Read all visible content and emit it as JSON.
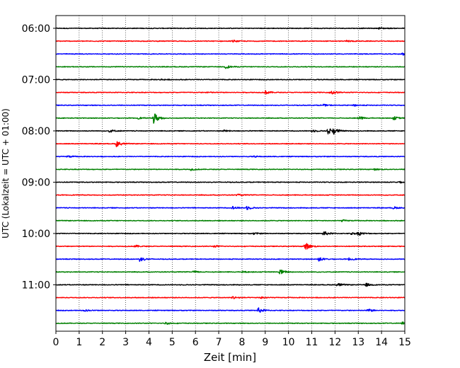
{
  "chart_data": {
    "type": "line",
    "title": "",
    "xlabel": "Zeit  [min]",
    "ylabel": "UTC (Lokalzeit = UTC + 01:00)",
    "xlim": [
      0,
      15
    ],
    "x_ticks": [
      "0",
      "1",
      "2",
      "3",
      "4",
      "5",
      "6",
      "7",
      "8",
      "9",
      "10",
      "11",
      "12",
      "13",
      "14",
      "15"
    ],
    "y_ticks": [
      "06:00",
      "07:00",
      "08:00",
      "09:00",
      "10:00",
      "11:00"
    ],
    "grid": "vertical dotted at each minute",
    "trace_colors": [
      "#000000",
      "#ff0000",
      "#0000ff",
      "#008000"
    ],
    "series": [
      {
        "start": "06:00",
        "color": "#000000",
        "events": [
          [
            13.9,
            0.3
          ]
        ]
      },
      {
        "start": "06:15",
        "color": "#ff0000",
        "events": [
          [
            7.6,
            0.3
          ],
          [
            12.5,
            0.3
          ]
        ]
      },
      {
        "start": "06:30",
        "color": "#0000ff",
        "events": [
          [
            14.9,
            0.4
          ]
        ]
      },
      {
        "start": "06:45",
        "color": "#008000",
        "events": [
          [
            7.3,
            0.6
          ]
        ]
      },
      {
        "start": "07:00",
        "color": "#000000",
        "events": [
          [
            4.5,
            0.2
          ]
        ]
      },
      {
        "start": "07:15",
        "color": "#ff0000",
        "events": [
          [
            9.0,
            0.6
          ],
          [
            11.8,
            0.9
          ],
          [
            6.5,
            0.2
          ]
        ]
      },
      {
        "start": "07:30",
        "color": "#0000ff",
        "events": [
          [
            11.5,
            0.3
          ],
          [
            12.8,
            0.3
          ]
        ]
      },
      {
        "start": "07:45",
        "color": "#008000",
        "events": [
          [
            4.2,
            2.0
          ],
          [
            13.0,
            0.6
          ],
          [
            14.5,
            0.6
          ],
          [
            3.5,
            0.3
          ]
        ]
      },
      {
        "start": "08:00",
        "color": "#000000",
        "events": [
          [
            2.3,
            0.5
          ],
          [
            11.7,
            1.2
          ],
          [
            11.9,
            1.0
          ],
          [
            7.2,
            0.3
          ],
          [
            11.0,
            0.4
          ]
        ]
      },
      {
        "start": "08:15",
        "color": "#ff0000",
        "events": [
          [
            2.6,
            1.0
          ]
        ]
      },
      {
        "start": "08:30",
        "color": "#0000ff",
        "events": [
          [
            0.5,
            0.3
          ],
          [
            8.5,
            0.2
          ]
        ]
      },
      {
        "start": "08:45",
        "color": "#008000",
        "events": [
          [
            5.8,
            0.3
          ],
          [
            13.7,
            0.2
          ]
        ]
      },
      {
        "start": "09:00",
        "color": "#000000",
        "events": [
          [
            14.7,
            0.3
          ]
        ]
      },
      {
        "start": "09:15",
        "color": "#ff0000",
        "events": [
          [
            7.8,
            0.3
          ]
        ]
      },
      {
        "start": "09:30",
        "color": "#0000ff",
        "events": [
          [
            7.6,
            0.5
          ],
          [
            8.2,
            0.6
          ],
          [
            14.5,
            0.4
          ]
        ]
      },
      {
        "start": "09:45",
        "color": "#008000",
        "events": [
          [
            12.3,
            0.3
          ]
        ]
      },
      {
        "start": "10:00",
        "color": "#000000",
        "events": [
          [
            11.5,
            0.8
          ],
          [
            13.0,
            0.6
          ],
          [
            12.7,
            0.4
          ],
          [
            8.5,
            0.3
          ]
        ]
      },
      {
        "start": "10:15",
        "color": "#ff0000",
        "events": [
          [
            10.7,
            1.4
          ],
          [
            3.4,
            0.4
          ],
          [
            6.8,
            0.3
          ]
        ]
      },
      {
        "start": "10:30",
        "color": "#0000ff",
        "events": [
          [
            3.6,
            0.8
          ],
          [
            11.3,
            0.6
          ],
          [
            12.6,
            0.4
          ]
        ]
      },
      {
        "start": "10:45",
        "color": "#008000",
        "events": [
          [
            9.6,
            1.0
          ],
          [
            5.9,
            0.4
          ],
          [
            8.0,
            0.3
          ]
        ]
      },
      {
        "start": "11:00",
        "color": "#000000",
        "events": [
          [
            12.1,
            0.6
          ],
          [
            13.3,
            0.6
          ]
        ]
      },
      {
        "start": "11:15",
        "color": "#ff0000",
        "events": [
          [
            7.6,
            0.5
          ],
          [
            8.8,
            0.4
          ]
        ]
      },
      {
        "start": "11:30",
        "color": "#0000ff",
        "events": [
          [
            8.7,
            0.9
          ],
          [
            13.4,
            0.6
          ],
          [
            1.2,
            0.3
          ]
        ]
      },
      {
        "start": "11:45",
        "color": "#008000",
        "events": [
          [
            4.7,
            0.4
          ],
          [
            14.9,
            0.5
          ]
        ]
      }
    ]
  }
}
